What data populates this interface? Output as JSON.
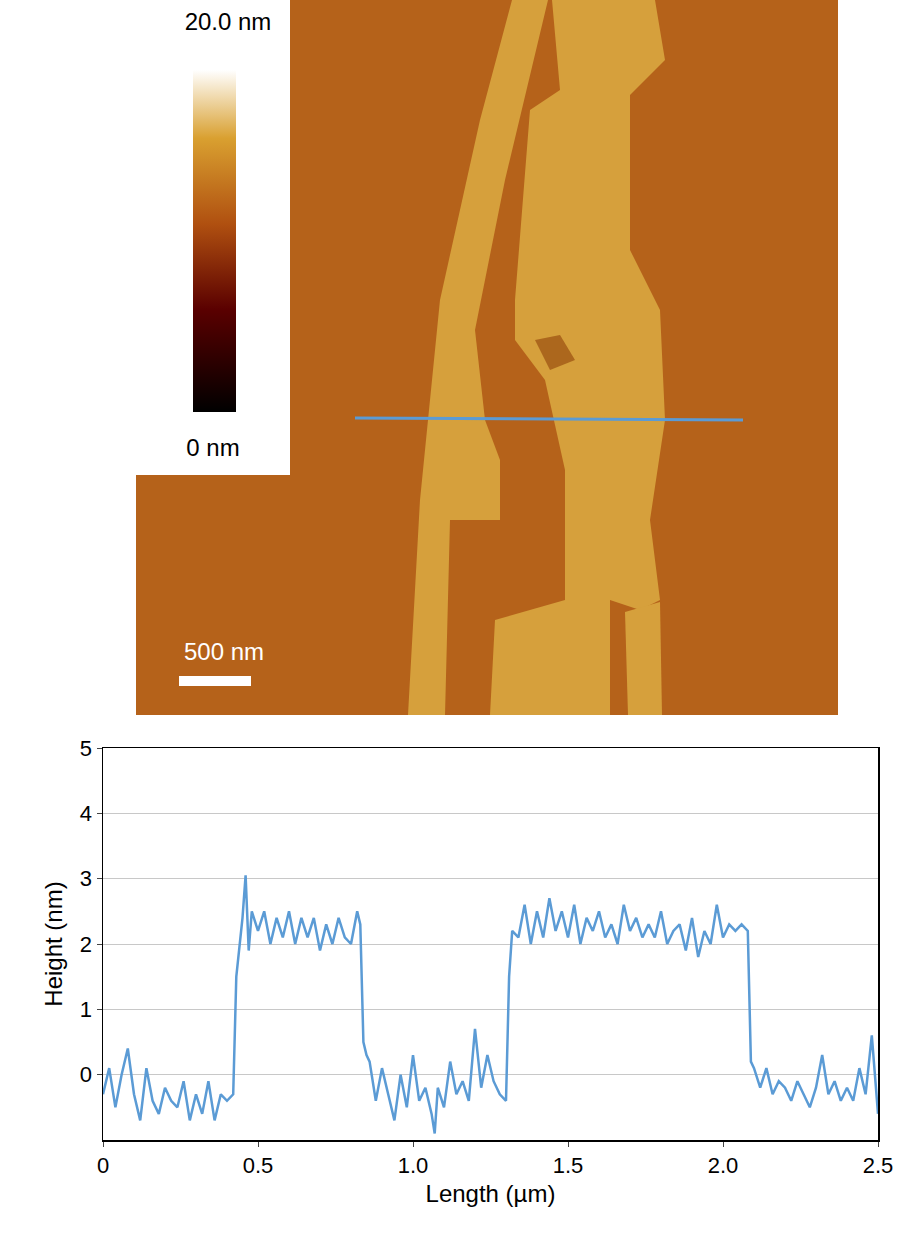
{
  "afm_image": {
    "colorbar": {
      "max_label": "20.0 nm",
      "min_label": "0 nm"
    },
    "scale_bar": "500 nm"
  },
  "chart_data": {
    "type": "line",
    "xlabel": "Length (µm)",
    "ylabel": "Height (nm)",
    "color": "#5b9bd5",
    "grid": true,
    "xlim": [
      0,
      2.5
    ],
    "ylim": [
      -1,
      5
    ],
    "xticks": [
      0,
      0.5,
      {
        "value": 1,
        "label": "1.0"
      },
      1.5,
      {
        "value": 2,
        "label": "2.0"
      },
      2.5
    ],
    "yticks": [
      0,
      1,
      2,
      3,
      4,
      5
    ],
    "x": [
      0,
      0.02,
      0.04,
      0.06,
      0.08,
      0.1,
      0.12,
      0.14,
      0.16,
      0.18,
      0.2,
      0.22,
      0.24,
      0.26,
      0.28,
      0.3,
      0.32,
      0.34,
      0.36,
      0.38,
      0.4,
      0.42,
      0.43,
      0.44,
      0.45,
      0.46,
      0.47,
      0.48,
      0.5,
      0.52,
      0.54,
      0.56,
      0.58,
      0.6,
      0.62,
      0.64,
      0.66,
      0.68,
      0.7,
      0.72,
      0.74,
      0.76,
      0.78,
      0.8,
      0.82,
      0.83,
      0.84,
      0.85,
      0.86,
      0.88,
      0.9,
      0.92,
      0.94,
      0.96,
      0.98,
      1.0,
      1.02,
      1.04,
      1.06,
      1.07,
      1.08,
      1.1,
      1.12,
      1.14,
      1.16,
      1.18,
      1.2,
      1.22,
      1.24,
      1.26,
      1.28,
      1.3,
      1.31,
      1.32,
      1.34,
      1.36,
      1.38,
      1.4,
      1.42,
      1.44,
      1.46,
      1.48,
      1.5,
      1.52,
      1.54,
      1.56,
      1.58,
      1.6,
      1.62,
      1.64,
      1.66,
      1.68,
      1.7,
      1.72,
      1.74,
      1.76,
      1.78,
      1.8,
      1.82,
      1.84,
      1.86,
      1.88,
      1.9,
      1.92,
      1.94,
      1.96,
      1.98,
      2.0,
      2.02,
      2.04,
      2.06,
      2.08,
      2.09,
      2.1,
      2.12,
      2.14,
      2.16,
      2.18,
      2.2,
      2.22,
      2.24,
      2.26,
      2.28,
      2.3,
      2.32,
      2.34,
      2.36,
      2.38,
      2.4,
      2.42,
      2.44,
      2.46,
      2.48,
      2.5
    ],
    "values": [
      -0.3,
      0.1,
      -0.5,
      0.0,
      0.4,
      -0.3,
      -0.7,
      0.1,
      -0.4,
      -0.6,
      -0.2,
      -0.4,
      -0.5,
      -0.1,
      -0.7,
      -0.3,
      -0.6,
      -0.1,
      -0.7,
      -0.3,
      -0.4,
      -0.3,
      1.5,
      2.0,
      2.4,
      3.05,
      1.9,
      2.5,
      2.2,
      2.5,
      2.0,
      2.4,
      2.1,
      2.5,
      2.0,
      2.4,
      2.1,
      2.4,
      1.9,
      2.3,
      2.0,
      2.4,
      2.1,
      2.0,
      2.5,
      2.3,
      0.5,
      0.3,
      0.2,
      -0.4,
      0.1,
      -0.3,
      -0.7,
      0.0,
      -0.5,
      0.3,
      -0.4,
      -0.2,
      -0.6,
      -0.9,
      -0.2,
      -0.5,
      0.2,
      -0.3,
      -0.1,
      -0.4,
      0.7,
      -0.2,
      0.3,
      -0.1,
      -0.3,
      -0.4,
      1.5,
      2.2,
      2.1,
      2.6,
      2.0,
      2.5,
      2.1,
      2.7,
      2.2,
      2.5,
      2.1,
      2.6,
      2.0,
      2.4,
      2.2,
      2.5,
      2.1,
      2.3,
      2.0,
      2.6,
      2.2,
      2.4,
      2.1,
      2.3,
      2.1,
      2.5,
      2.0,
      2.2,
      2.3,
      1.9,
      2.4,
      1.8,
      2.2,
      2.0,
      2.6,
      2.1,
      2.3,
      2.2,
      2.3,
      2.2,
      0.2,
      0.1,
      -0.2,
      0.1,
      -0.3,
      -0.1,
      -0.2,
      -0.4,
      -0.1,
      -0.3,
      -0.5,
      -0.2,
      0.3,
      -0.3,
      -0.1,
      -0.4,
      -0.2,
      -0.4,
      0.1,
      -0.3,
      0.6,
      -0.6
    ]
  }
}
